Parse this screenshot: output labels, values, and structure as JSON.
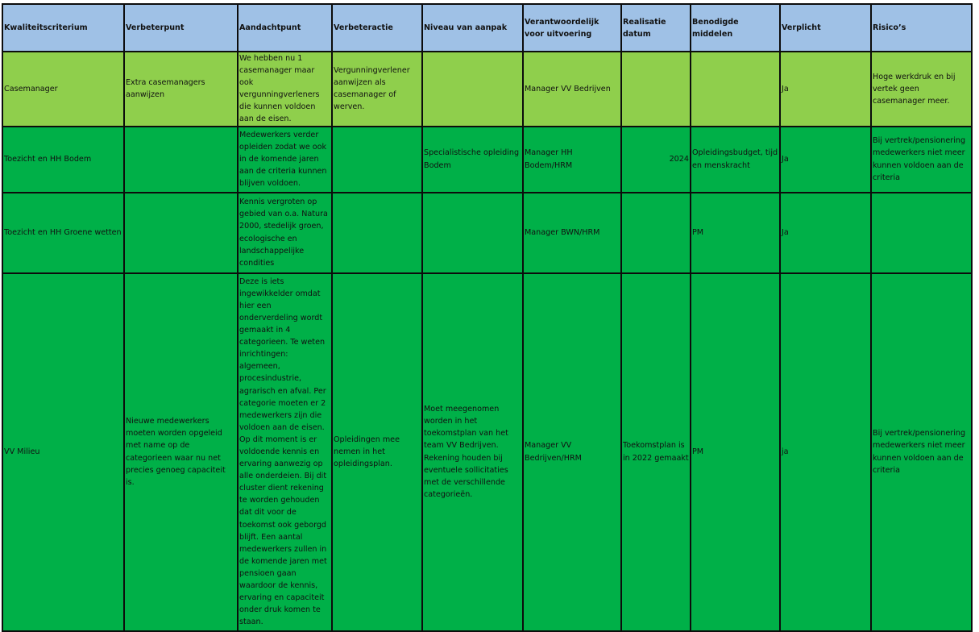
{
  "headers": [
    "Kwaliteitscriterium",
    "Verbeterpunt",
    "Aandachtpunt",
    "Verbeteractie",
    "Niveau van aanpak",
    "Verantwoordelijk voor uitvoering",
    "Realisatie datum",
    "Benodigde middelen",
    "Verplicht",
    "Risico’s"
  ],
  "rows": [
    [
      "Casemanager",
      "Extra casemanagers aanwijzen",
      "We hebben nu 1 casemanager maar ook vergunningverleners die kunnen voldoen aan de eisen.",
      "Vergunningverlener aanwijzen als casemanager of werven.",
      "",
      "Manager VV Bedrijven",
      "",
      "",
      "Ja",
      "Hoge werkdruk en bij vertek geen casemanager meer."
    ],
    [
      "Toezicht en HH Bodem",
      "",
      "Medewerkers verder opleiden zodat we ook in de komende jaren aan de criteria kunnen blijven voldoen.",
      "",
      "Specialistische opleiding Bodem",
      "Manager HH Bodem/HRM",
      "2024",
      "Opleidingsbudget, tijd en menskracht",
      "Ja",
      "Bij vertrek/pensionering medewerkers niet meer kunnen voldoen aan de criteria"
    ],
    [
      "Toezicht en HH Groene wetten",
      "",
      "Kennis vergroten op gebied van o.a. Natura 2000, stedelijk groen, ecologische en landschappelijke condities",
      "",
      "",
      "Manager BWN/HRM",
      "",
      "PM",
      "Ja",
      ""
    ],
    [
      "VV Milieu",
      "Nieuwe medewerkers moeten worden opgeleid met name op de categorieen waar nu net precies genoeg capaciteit is.",
      "Deze is iets ingewikkelder omdat hier een onderverdeling wordt gemaakt in 4 categorieen. Te weten inrichtingen: algemeen, procesindustrie, agrarisch en afval. Per categorie moeten er 2 medewerkers zijn die voldoen aan de eisen. Op dit moment is er voldoende kennis en ervaring aanwezig op alle onderdeien. Bij dit cluster dient rekening te worden gehouden dat dit voor de toekomst ook geborgd blijft. Een aantal medewerkers zullen in de komende jaren met pensioen gaan waardoor de kennis, ervaring en capaciteit onder druk komen te staan.",
      "Opleidingen mee nemen in het opleidingsplan.",
      "Moet meegenomen worden in het toekomstplan van het team VV Bedrijven. Rekening houden bij eventuele sollicitaties met de verschillende categorieën.",
      "Manager VV Bedrijven/HRM",
      "Toekomstplan is in 2022 gemaakt",
      "PM",
      "ja",
      "Bij vertrek/pensionering medewerkers niet meer kunnen voldoen aan de criteria"
    ]
  ],
  "colors": {
    "header": "#9fc1e6",
    "row_light_green": "#8fcf4c",
    "row_green": "#00b048",
    "grid": "#0c0c0c"
  }
}
